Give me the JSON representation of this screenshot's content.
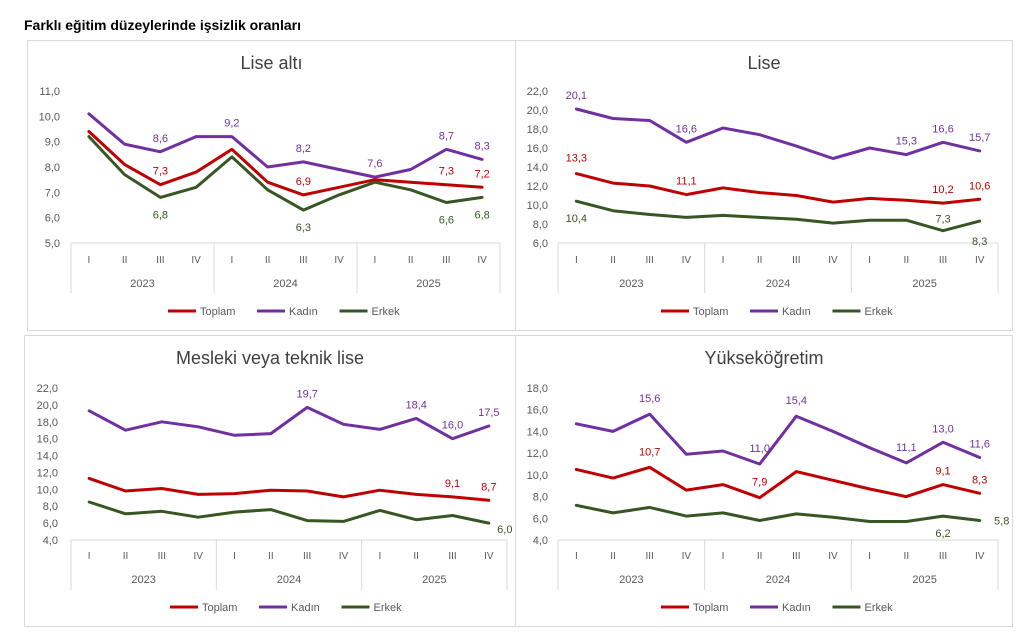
{
  "page_title": "Farklı eğitim düzeylerinde işsizlik oranları",
  "colors": {
    "Toplam": "#c00000",
    "Kadın": "#7030a0",
    "Erkek": "#375623",
    "axis": "#595959",
    "grid": "#d9d9d9"
  },
  "chart_data": [
    {
      "type": "line",
      "title": "Lise altı",
      "ylim": [
        5.0,
        11.0
      ],
      "ystep": 1.0,
      "quarters": [
        "I",
        "II",
        "III",
        "IV",
        "I",
        "II",
        "III",
        "IV",
        "I",
        "II",
        "III",
        "IV"
      ],
      "years": [
        "2023",
        "2024",
        "2025"
      ],
      "series": [
        {
          "name": "Toplam",
          "values": [
            9.4,
            8.1,
            7.3,
            7.8,
            8.7,
            7.4,
            6.9,
            7.2,
            7.5,
            7.4,
            7.3,
            7.2
          ],
          "labels": {
            "2": "7,3",
            "6": "6,9",
            "10": "7,3",
            "11": "7,2"
          }
        },
        {
          "name": "Kadın",
          "values": [
            10.1,
            8.9,
            8.6,
            9.2,
            9.2,
            8.0,
            8.2,
            7.9,
            7.6,
            7.9,
            8.7,
            8.3
          ],
          "labels": {
            "2": "8,6",
            "4": "9,2",
            "6": "8,2",
            "8": "7,6",
            "10": "8,7",
            "11": "8,3"
          }
        },
        {
          "name": "Erkek",
          "values": [
            9.2,
            7.7,
            6.8,
            7.2,
            8.4,
            7.1,
            6.3,
            6.9,
            7.4,
            7.1,
            6.6,
            6.8
          ],
          "labels": {
            "2": "6,8",
            "6": "6,3",
            "10": "6,6",
            "11": "6,8"
          }
        }
      ],
      "legend": [
        "Toplam",
        "Kadın",
        "Erkek"
      ]
    },
    {
      "type": "line",
      "title": "Lise",
      "ylim": [
        6.0,
        22.0
      ],
      "ystep": 2.0,
      "quarters": [
        "I",
        "II",
        "III",
        "IV",
        "I",
        "II",
        "III",
        "IV",
        "I",
        "II",
        "III",
        "IV"
      ],
      "years": [
        "2023",
        "2024",
        "2025"
      ],
      "series": [
        {
          "name": "Toplam",
          "values": [
            13.3,
            12.3,
            12.0,
            11.1,
            11.8,
            11.3,
            11.0,
            10.3,
            10.7,
            10.5,
            10.2,
            10.6
          ],
          "labels": {
            "0": "13,3",
            "3": "11,1",
            "10": "10,2",
            "11": "10,6"
          }
        },
        {
          "name": "Kadın",
          "values": [
            20.1,
            19.1,
            18.9,
            16.6,
            18.1,
            17.4,
            16.2,
            14.9,
            16.0,
            15.3,
            16.6,
            15.7
          ],
          "labels": {
            "0": "20,1",
            "3": "16,6",
            "9": "15,3",
            "10": "16,6",
            "11": "15,7"
          }
        },
        {
          "name": "Erkek",
          "values": [
            10.4,
            9.4,
            9.0,
            8.7,
            8.9,
            8.7,
            8.5,
            8.1,
            8.4,
            8.4,
            7.3,
            8.3
          ],
          "labels": {
            "0": "10,4",
            "10": "7,3",
            "11": "8,3"
          }
        }
      ],
      "legend": [
        "Toplam",
        "Kadın",
        "Erkek"
      ]
    },
    {
      "type": "line",
      "title": "Mesleki veya teknik lise",
      "ylim": [
        4.0,
        22.0
      ],
      "ystep": 2.0,
      "quarters": [
        "I",
        "II",
        "III",
        "IV",
        "I",
        "II",
        "III",
        "IV",
        "I",
        "II",
        "III",
        "IV"
      ],
      "years": [
        "2023",
        "2024",
        "2025"
      ],
      "series": [
        {
          "name": "Toplam",
          "values": [
            11.3,
            9.8,
            10.1,
            9.4,
            9.5,
            9.9,
            9.8,
            9.1,
            9.9,
            9.4,
            9.1,
            8.7
          ],
          "labels": {
            "10": "9,1",
            "11": "8,7"
          }
        },
        {
          "name": "Kadın",
          "values": [
            19.3,
            17.0,
            18.0,
            17.4,
            16.4,
            16.6,
            19.7,
            17.7,
            17.1,
            18.4,
            16.0,
            17.5
          ],
          "labels": {
            "6": "19,7",
            "9": "18,4",
            "10": "16,0",
            "11": "17,5"
          }
        },
        {
          "name": "Erkek",
          "values": [
            8.5,
            7.1,
            7.4,
            6.7,
            7.3,
            7.6,
            6.3,
            6.2,
            7.5,
            6.4,
            6.9,
            6.0
          ],
          "labels": {
            "11": "6,0"
          }
        }
      ],
      "legend": [
        "Toplam",
        "Kadın",
        "Erkek"
      ]
    },
    {
      "type": "line",
      "title": "Yükseköğretim",
      "ylim": [
        4.0,
        18.0
      ],
      "ystep": 2.0,
      "quarters": [
        "I",
        "II",
        "III",
        "IV",
        "I",
        "II",
        "III",
        "IV",
        "I",
        "II",
        "III",
        "IV"
      ],
      "years": [
        "2023",
        "2024",
        "2025"
      ],
      "series": [
        {
          "name": "Toplam",
          "values": [
            10.5,
            9.7,
            10.7,
            8.6,
            9.1,
            7.9,
            10.3,
            9.5,
            8.7,
            8.0,
            9.1,
            8.3
          ],
          "labels": {
            "2": "10,7",
            "5": "7,9",
            "10": "9,1",
            "11": "8,3"
          }
        },
        {
          "name": "Kadın",
          "values": [
            14.7,
            14.0,
            15.6,
            11.9,
            12.2,
            11.0,
            15.4,
            14.0,
            12.5,
            11.1,
            13.0,
            11.6
          ],
          "labels": {
            "2": "15,6",
            "5": "11,0",
            "6": "15,4",
            "9": "11,1",
            "10": "13,0",
            "11": "11,6"
          }
        },
        {
          "name": "Erkek",
          "values": [
            7.2,
            6.5,
            7.0,
            6.2,
            6.5,
            5.8,
            6.4,
            6.1,
            5.7,
            5.7,
            6.2,
            5.8
          ],
          "labels": {
            "10": "6,2",
            "11": "5,8"
          }
        }
      ],
      "legend": [
        "Toplam",
        "Kadın",
        "Erkek"
      ]
    }
  ]
}
